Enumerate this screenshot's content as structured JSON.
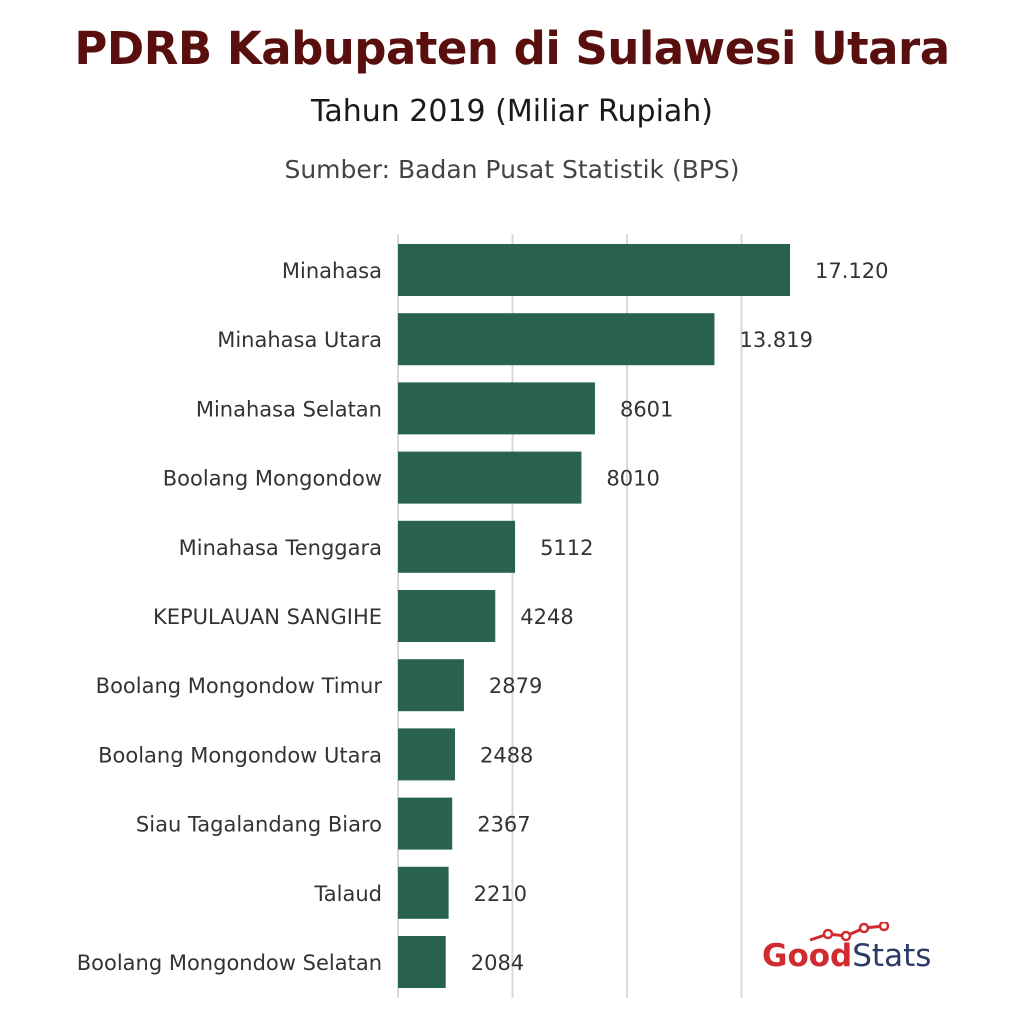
{
  "header": {
    "title": "PDRB Kabupaten di Sulawesi Utara",
    "subtitle": "Tahun 2019 (Miliar Rupiah)",
    "source": "Sumber: Badan Pusat Statistik (BPS)"
  },
  "logo": {
    "part1": "Good",
    "part2": "Stats"
  },
  "colors": {
    "bar": "#2a6250",
    "title": "#5a0f0f",
    "grid": "#d9d9d9",
    "logo_red": "#d12a2f",
    "logo_navy": "#2b3a67"
  },
  "chart_data": {
    "type": "bar",
    "orientation": "horizontal",
    "title": "PDRB Kabupaten di Sulawesi Utara",
    "subtitle": "Tahun 2019 (Miliar Rupiah)",
    "categories": [
      "Minahasa",
      "Minahasa Utara",
      "Minahasa Selatan",
      "Boolang Mongondow",
      "Minahasa Tenggara",
      "KEPULAUAN SANGIHE",
      "Boolang Mongondow Timur",
      "Boolang Mongondow Utara",
      "Siau Tagalandang Biaro",
      "Talaud",
      "Boolang Mongondow Selatan"
    ],
    "values": [
      17120,
      13819,
      8601,
      8010,
      5112,
      4248,
      2879,
      2488,
      2367,
      2210,
      2084
    ],
    "value_labels": [
      "17.120",
      "13.819",
      "8601",
      "8010",
      "5112",
      "4248",
      "2879",
      "2488",
      "2367",
      "2210",
      "2084"
    ],
    "xlim": [
      0,
      20000
    ],
    "grid": true,
    "grid_values": [
      0,
      5000,
      10000,
      15000
    ],
    "legend": "none",
    "xlabel": "",
    "ylabel": ""
  }
}
